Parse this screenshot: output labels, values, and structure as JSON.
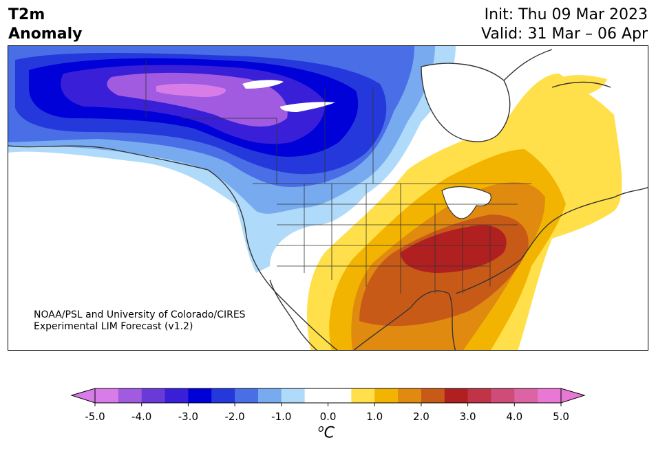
{
  "title": {
    "line1": "T2m",
    "line2": "Anomaly"
  },
  "dates": {
    "init": "Init: Thu 09 Mar 2023",
    "valid": "Valid: 31 Mar – 06 Apr"
  },
  "credit": {
    "line1": "NOAA/PSL and University of Colorado/CIRES",
    "line2": "Experimental LIM Forecast (v1.2)"
  },
  "colorbar": {
    "ticks": [
      "-5.0",
      "-4.0",
      "-3.0",
      "-2.0",
      "-1.0",
      "0.0",
      "1.0",
      "2.0",
      "3.0",
      "4.0",
      "5.0"
    ],
    "unit_symbol": "C",
    "unit_sup": "o",
    "colors": [
      "#d87ce8",
      "#a05be0",
      "#6a3ad8",
      "#3a1fd8",
      "#0000d8",
      "#2438dc",
      "#4a6ee6",
      "#78aaf0",
      "#b0dafa",
      "#ffffff",
      "#ffffff",
      "#ffe04a",
      "#f2b400",
      "#e08a10",
      "#c85a18",
      "#b02020",
      "#c03448",
      "#d04c78",
      "#dc64a4",
      "#e878d4"
    ],
    "under_color": "#d87ce8",
    "over_color": "#e878d4"
  },
  "map": {
    "anomaly_colors": {
      "cold_5": "#d87ce8",
      "cold_4": "#a05be0",
      "cold_3": "#3a1fd8",
      "cold_25": "#0000d8",
      "cold_2": "#2438dc",
      "cold_15": "#4a6ee6",
      "cold_1": "#78aaf0",
      "cold_05": "#b0dafa",
      "warm_05": "#ffe04a",
      "warm_1": "#f2b400",
      "warm_15": "#e08a10",
      "warm_2": "#c85a18",
      "warm_25": "#b02020"
    }
  }
}
